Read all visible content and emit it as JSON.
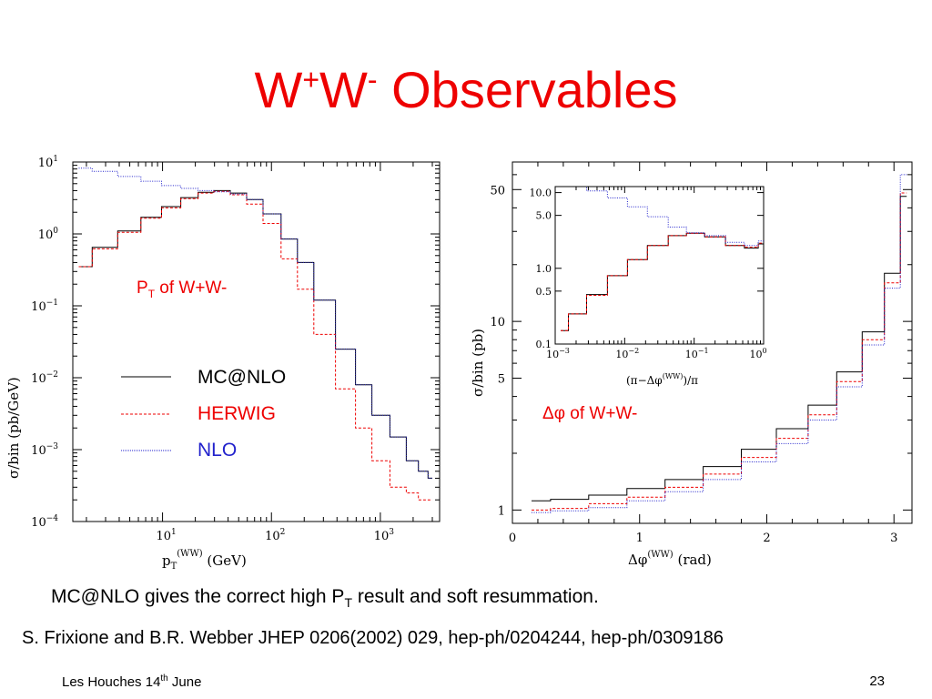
{
  "slide": {
    "title_main": "W",
    "title_sup1": "+",
    "title_mid": "W",
    "title_sup2": "-",
    "title_rest": " Observables",
    "caption_pre": "MC@NLO gives the correct high P",
    "caption_sub": "T",
    "caption_post": " result and soft resummation.",
    "citation": "S. Frixione and B.R. Webber JHEP 0206(2002) 029, hep-ph/0204244, hep-ph/0309186",
    "footer_pre": "Les Houches 14",
    "footer_sup": "th",
    "footer_post": " June",
    "page_number": "23"
  },
  "colors": {
    "title": "#ee0000",
    "mcatnlo": "#000000",
    "herwig": "#ee0000",
    "nlo": "#2222cc"
  },
  "legend": {
    "mcatnlo": "MC@NLO",
    "herwig": "HERWIG",
    "nlo": "NLO"
  },
  "left_plot": {
    "annotation_main": "P",
    "annotation_sub": "T",
    "annotation_rest": " of W+W-",
    "ylabel": "σ/bin (pb/GeV)",
    "xlabel_main": "p",
    "xlabel_sub": "T",
    "xlabel_sup": "(WW)",
    "xlabel_unit": " (GeV)",
    "yticks": [
      {
        "base": "10",
        "exp": "1"
      },
      {
        "base": "10",
        "exp": "0"
      },
      {
        "base": "10",
        "exp": "−1"
      },
      {
        "base": "10",
        "exp": "−2"
      },
      {
        "base": "10",
        "exp": "−3"
      },
      {
        "base": "10",
        "exp": "−4"
      }
    ],
    "xticks": [
      {
        "base": "10",
        "exp": "1"
      },
      {
        "base": "10",
        "exp": "2"
      },
      {
        "base": "10",
        "exp": "3"
      }
    ]
  },
  "right_plot": {
    "annotation": "Δφ of W+W-",
    "ylabel": "σ/bin (pb)",
    "xlabel_main": "Δφ",
    "xlabel_sup": "(WW)",
    "xlabel_unit": " (rad)",
    "yticks": [
      "50",
      "10",
      "5",
      "1"
    ],
    "xticks": [
      "0",
      "1",
      "2",
      "3"
    ],
    "inset": {
      "yticks": [
        "10.0",
        "5.0",
        "1.0",
        "0.5",
        "0.1"
      ],
      "xticks": [
        {
          "base": "10",
          "exp": "−3"
        },
        {
          "base": "10",
          "exp": "−2"
        },
        {
          "base": "10",
          "exp": "−1"
        },
        {
          "base": "10",
          "exp": "0"
        }
      ],
      "xlabel_pre": "(π−Δφ",
      "xlabel_sup": "(WW)",
      "xlabel_post": ")/π"
    }
  },
  "chart_data": [
    {
      "type": "line",
      "x_scale": "log",
      "y_scale": "log",
      "xlim": [
        1.5,
        3500
      ],
      "ylim": [
        0.0001,
        10
      ],
      "x": [
        1.7,
        3,
        5,
        8,
        12,
        18,
        25,
        35,
        50,
        70,
        100,
        150,
        200,
        300,
        500,
        700,
        1000,
        1500,
        2000,
        2500,
        3000
      ],
      "series": [
        {
          "name": "MC@NLO",
          "values": [
            0.35,
            0.65,
            1.1,
            1.7,
            2.4,
            3.2,
            3.8,
            4.0,
            3.7,
            3.0,
            1.9,
            0.85,
            0.4,
            0.12,
            0.025,
            0.008,
            0.003,
            0.0015,
            0.0007,
            0.0005,
            0.0004
          ]
        },
        {
          "name": "HERWIG",
          "values": [
            0.35,
            0.62,
            1.05,
            1.65,
            2.3,
            3.1,
            3.7,
            3.9,
            3.5,
            2.6,
            1.4,
            0.45,
            0.17,
            0.04,
            0.007,
            0.002,
            0.0007,
            0.0003,
            0.00025,
            0.0002,
            0.0002
          ]
        },
        {
          "name": "NLO",
          "values": [
            8.2,
            7.4,
            6.3,
            5.4,
            4.7,
            4.3,
            4.0,
            3.85,
            3.6,
            3.0,
            1.9,
            0.85,
            0.4,
            0.12,
            0.025,
            0.008,
            0.003,
            0.0015,
            0.0007,
            0.0005,
            0.0004
          ]
        }
      ]
    },
    {
      "type": "line",
      "y_scale": "log",
      "xlim": [
        0,
        3.1416
      ],
      "ylim": [
        0.85,
        70
      ],
      "x": [
        0.15,
        0.45,
        0.75,
        1.05,
        1.35,
        1.65,
        1.95,
        2.2,
        2.45,
        2.65,
        2.85,
        3.0,
        3.1
      ],
      "series": [
        {
          "name": "MC@NLO",
          "values": [
            1.12,
            1.14,
            1.2,
            1.3,
            1.45,
            1.7,
            2.1,
            2.7,
            3.6,
            5.4,
            8.8,
            18,
            46
          ]
        },
        {
          "name": "HERWIG",
          "values": [
            1.0,
            1.02,
            1.08,
            1.17,
            1.32,
            1.55,
            1.9,
            2.4,
            3.2,
            4.8,
            8.0,
            16,
            48
          ]
        },
        {
          "name": "NLO",
          "values": [
            0.97,
            0.99,
            1.03,
            1.12,
            1.25,
            1.45,
            1.8,
            2.25,
            3.0,
            4.5,
            7.5,
            15,
            60
          ]
        }
      ]
    },
    {
      "type": "line",
      "x_scale": "log",
      "y_scale": "log",
      "xlim": [
        0.001,
        1
      ],
      "ylim": [
        0.1,
        12
      ],
      "x": [
        0.0012,
        0.002,
        0.004,
        0.008,
        0.015,
        0.03,
        0.06,
        0.1,
        0.2,
        0.4,
        0.7,
        1.0
      ],
      "series": [
        {
          "name": "MC@NLO",
          "values": [
            0.15,
            0.25,
            0.45,
            0.8,
            1.3,
            2.0,
            2.7,
            2.9,
            2.6,
            2.0,
            1.85,
            2.1
          ]
        },
        {
          "name": "HERWIG",
          "values": [
            0.15,
            0.25,
            0.44,
            0.8,
            1.3,
            2.0,
            2.7,
            2.9,
            2.6,
            2.0,
            1.9,
            2.15
          ]
        },
        {
          "name": "NLO",
          "values": [
            14,
            12.5,
            10.5,
            8.5,
            6.5,
            4.8,
            3.5,
            2.95,
            2.7,
            2.2,
            2.0,
            2.3
          ]
        }
      ]
    }
  ]
}
